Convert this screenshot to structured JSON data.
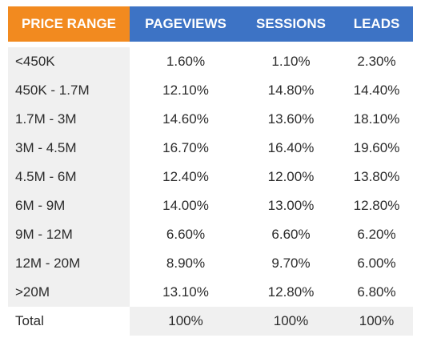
{
  "table": {
    "headers": [
      "PRICE RANGE",
      "PAGEVIEWS",
      "SESSIONS",
      "LEADS"
    ],
    "rows": [
      {
        "range": "<450K",
        "pageviews": "1.60%",
        "sessions": "1.10%",
        "leads": "2.30%"
      },
      {
        "range": "450K - 1.7M",
        "pageviews": "12.10%",
        "sessions": "14.80%",
        "leads": "14.40%"
      },
      {
        "range": "1.7M - 3M",
        "pageviews": "14.60%",
        "sessions": "13.60%",
        "leads": "18.10%"
      },
      {
        "range": "3M - 4.5M",
        "pageviews": "16.70%",
        "sessions": "16.40%",
        "leads": "19.60%"
      },
      {
        "range": "4.5M - 6M",
        "pageviews": "12.40%",
        "sessions": "12.00%",
        "leads": "13.80%"
      },
      {
        "range": "6M - 9M",
        "pageviews": "14.00%",
        "sessions": "13.00%",
        "leads": "12.80%"
      },
      {
        "range": "9M - 12M",
        "pageviews": "6.60%",
        "sessions": "6.60%",
        "leads": "6.20%"
      },
      {
        "range": "12M - 20M",
        "pageviews": "8.90%",
        "sessions": "9.70%",
        "leads": "6.00%"
      },
      {
        "range": ">20M",
        "pageviews": "13.10%",
        "sessions": "12.80%",
        "leads": "6.80%"
      }
    ],
    "total": {
      "label": "Total",
      "pageviews": "100%",
      "sessions": "100%",
      "leads": "100%"
    }
  },
  "colors": {
    "range_header": "#f28a1f",
    "metric_header": "#3d73c5",
    "shade": "#f0f0f0"
  }
}
